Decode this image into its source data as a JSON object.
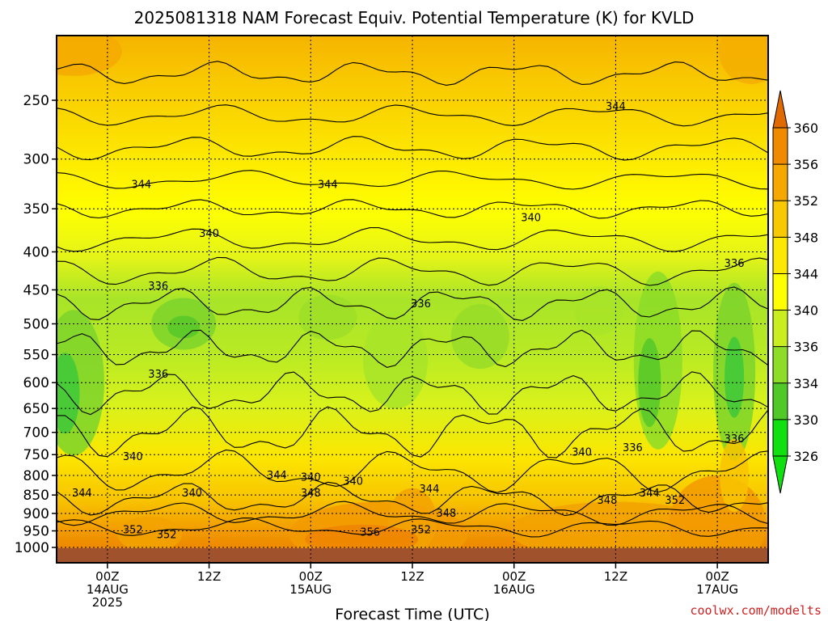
{
  "chart_data": {
    "type": "heatmap",
    "title": "2025081318 NAM Forecast Equiv. Potential Temperature (K) for KVLD",
    "xlabel": "Forecast Time (UTC)",
    "ylabel": "",
    "credit": "coolwx.com/modelts",
    "y_axis": {
      "scale": "log-pressure",
      "ylim": [
        1000,
        200
      ],
      "tick_labels": [
        "250",
        "300",
        "350",
        "400",
        "450",
        "500",
        "550",
        "600",
        "650",
        "700",
        "750",
        "800",
        "850",
        "900",
        "950",
        "1000"
      ],
      "tick_values": [
        250,
        300,
        350,
        400,
        450,
        500,
        550,
        600,
        650,
        700,
        750,
        800,
        850,
        900,
        950,
        1000
      ]
    },
    "x_axis": {
      "range_hours": [
        -6,
        78
      ],
      "ticks": [
        {
          "hour": 0,
          "line1": "00Z",
          "line2": "14AUG",
          "line3": "2025"
        },
        {
          "hour": 12,
          "line1": "12Z",
          "line2": "",
          "line3": ""
        },
        {
          "hour": 24,
          "line1": "00Z",
          "line2": "15AUG",
          "line3": ""
        },
        {
          "hour": 36,
          "line1": "12Z",
          "line2": "",
          "line3": ""
        },
        {
          "hour": 48,
          "line1": "00Z",
          "line2": "16AUG",
          "line3": ""
        },
        {
          "hour": 60,
          "line1": "12Z",
          "line2": "",
          "line3": ""
        },
        {
          "hour": 72,
          "line1": "00Z",
          "line2": "17AUG",
          "line3": ""
        }
      ]
    },
    "grid": true,
    "colorbar": {
      "labels": [
        "360",
        "356",
        "352",
        "348",
        "344",
        "340",
        "336",
        "334",
        "330",
        "326"
      ],
      "colors": [
        "#e06a00",
        "#f08a00",
        "#f4a800",
        "#f8c800",
        "#fce800",
        "#ffff00",
        "#c8ee20",
        "#8cdc28",
        "#50c828",
        "#10e010"
      ]
    },
    "contour_labels": [
      {
        "text": "344",
        "hour": 4,
        "p": 325
      },
      {
        "text": "344",
        "hour": 26,
        "p": 325
      },
      {
        "text": "344",
        "hour": 60,
        "p": 255
      },
      {
        "text": "340",
        "hour": 12,
        "p": 378
      },
      {
        "text": "340",
        "hour": 50,
        "p": 360
      },
      {
        "text": "336",
        "hour": 6,
        "p": 445
      },
      {
        "text": "336",
        "hour": 37,
        "p": 470
      },
      {
        "text": "336",
        "hour": 74,
        "p": 415
      },
      {
        "text": "336",
        "hour": 6,
        "p": 585
      },
      {
        "text": "340",
        "hour": 3,
        "p": 755
      },
      {
        "text": "344",
        "hour": -3,
        "p": 845
      },
      {
        "text": "340",
        "hour": 10,
        "p": 845
      },
      {
        "text": "344",
        "hour": 20,
        "p": 800
      },
      {
        "text": "340",
        "hour": 24,
        "p": 805
      },
      {
        "text": "348",
        "hour": 24,
        "p": 845
      },
      {
        "text": "340",
        "hour": 29,
        "p": 815
      },
      {
        "text": "344",
        "hour": 38,
        "p": 835
      },
      {
        "text": "348",
        "hour": 40,
        "p": 900
      },
      {
        "text": "356",
        "hour": 31,
        "p": 955
      },
      {
        "text": "352",
        "hour": 37,
        "p": 948
      },
      {
        "text": "352",
        "hour": 3,
        "p": 948
      },
      {
        "text": "352",
        "hour": 7,
        "p": 962
      },
      {
        "text": "340",
        "hour": 56,
        "p": 745
      },
      {
        "text": "336",
        "hour": 62,
        "p": 735
      },
      {
        "text": "348",
        "hour": 59,
        "p": 865
      },
      {
        "text": "344",
        "hour": 64,
        "p": 845
      },
      {
        "text": "352",
        "hour": 67,
        "p": 865
      },
      {
        "text": "336",
        "hour": 74,
        "p": 715
      }
    ],
    "thetae_field_note": ""
  }
}
